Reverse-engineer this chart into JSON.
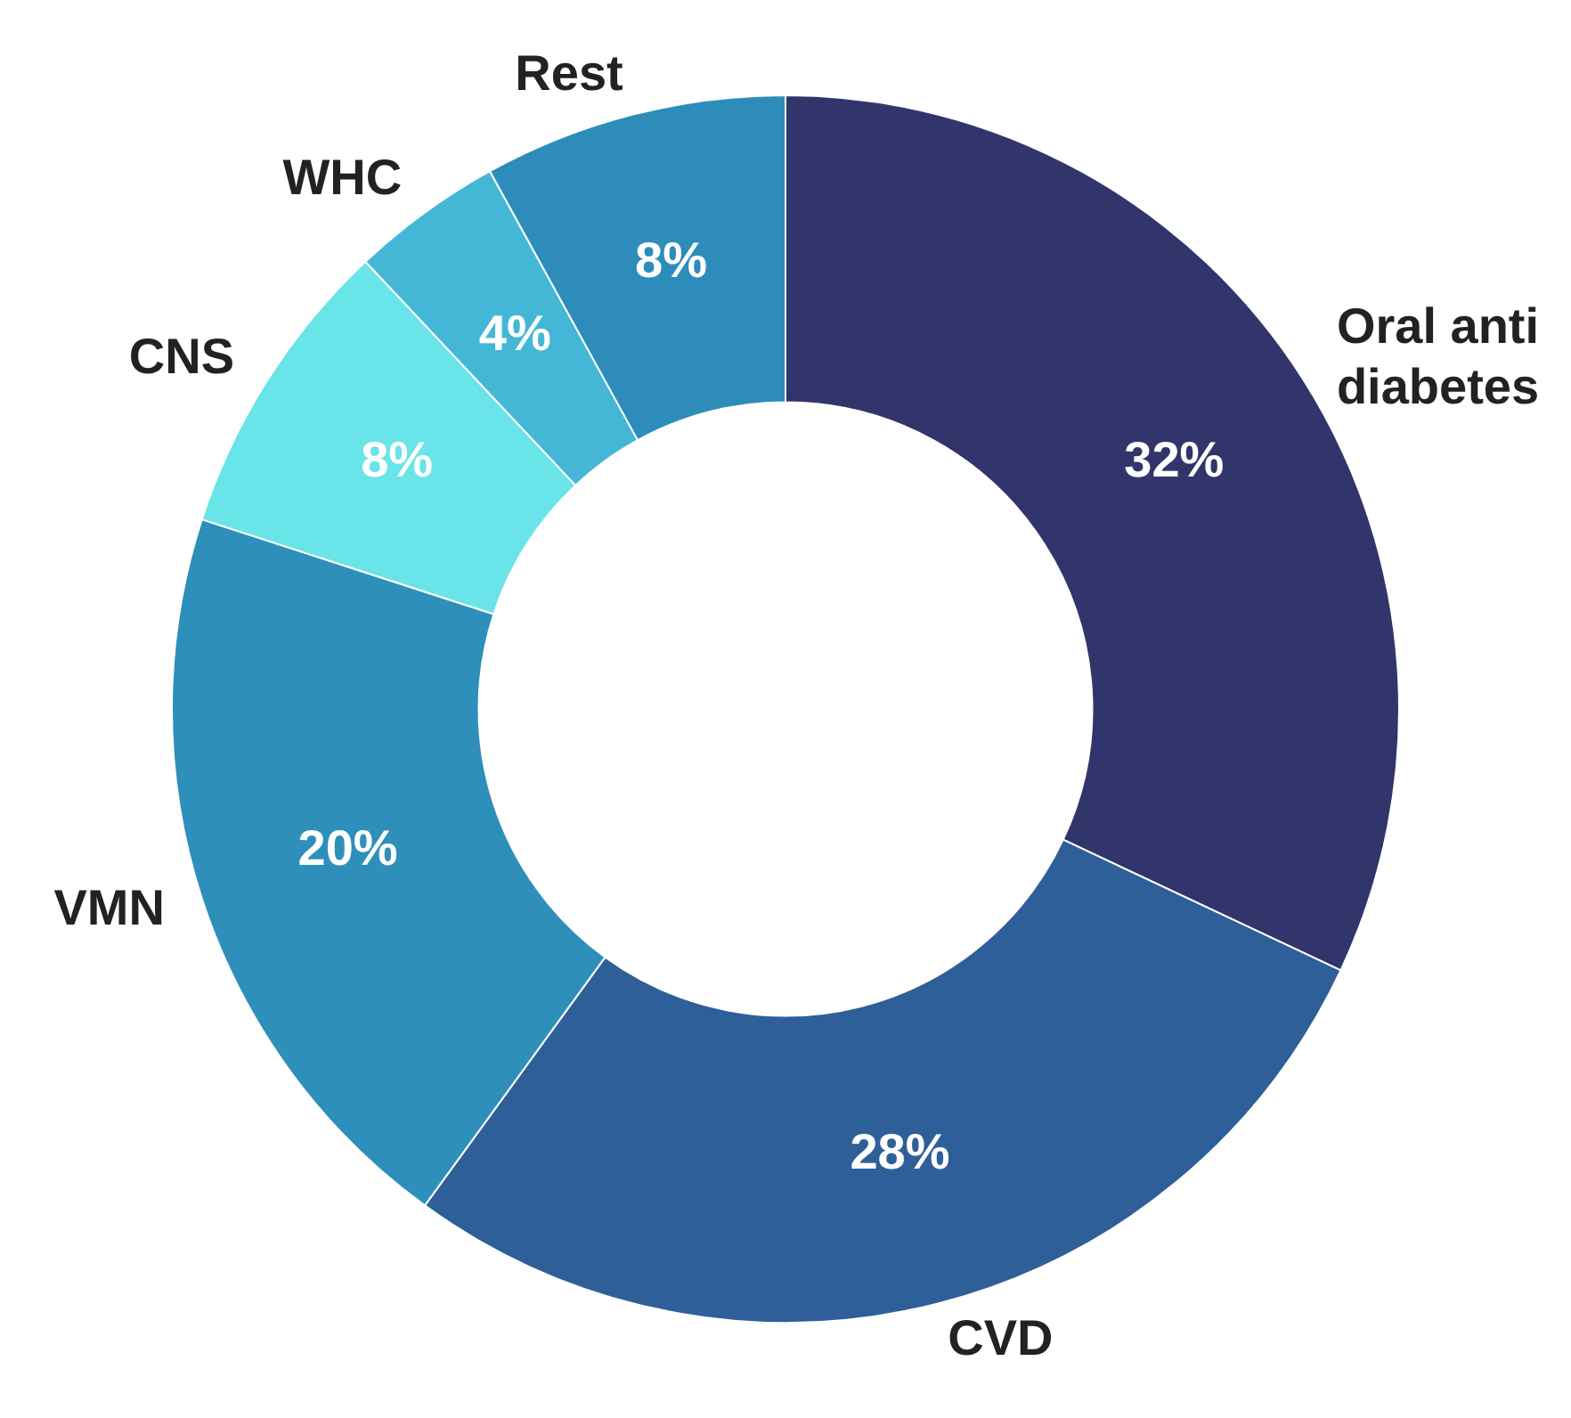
{
  "chart_data": {
    "type": "donut",
    "categories": [
      "Oral anti diabetes",
      "CVD",
      "VMN",
      "CNS",
      "WHC",
      "Rest"
    ],
    "values": [
      32,
      28,
      20,
      8,
      4,
      8
    ],
    "colors": [
      "#31356b",
      "#2e5f98",
      "#2e8fba",
      "#69e4e9",
      "#45b7d6",
      "#2e8cba"
    ],
    "value_labels": [
      "32%",
      "28%",
      "20%",
      "8%",
      "4%",
      "8%"
    ],
    "legend": false
  }
}
